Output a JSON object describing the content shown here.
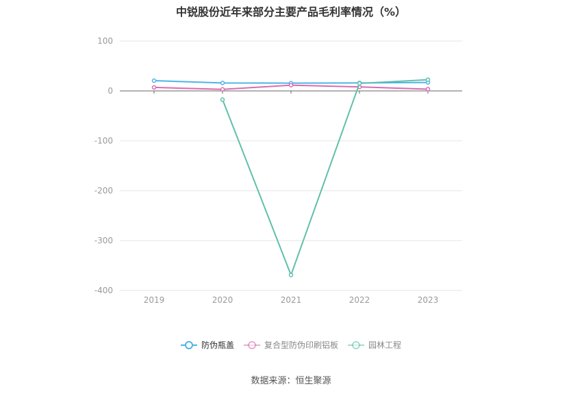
{
  "chart_data": {
    "type": "line",
    "title": "中锐股份近年来部分主要产品毛利率情况（%）",
    "categories": [
      "2019",
      "2020",
      "2021",
      "2022",
      "2023"
    ],
    "ylim": [
      -400,
      100
    ],
    "yticks": [
      "100",
      "0",
      "-100",
      "-200",
      "-300",
      "-400"
    ],
    "grid": true,
    "legend_position": "bottom",
    "series": [
      {
        "name": "防伪瓶盖",
        "color": "#4db3e8",
        "values": [
          20.5,
          16.0,
          15.5,
          16.0,
          17.0
        ]
      },
      {
        "name": "复合型防伪印刷铝板",
        "color": "#d96bb0",
        "values": [
          7.0,
          3.0,
          11.5,
          8.0,
          3.5
        ]
      },
      {
        "name": "园林工程",
        "color": "#5fbfaa",
        "values": [
          null,
          -17.5,
          -369.0,
          15.0,
          22.5
        ]
      }
    ]
  },
  "source": "数据来源：恒生聚源"
}
